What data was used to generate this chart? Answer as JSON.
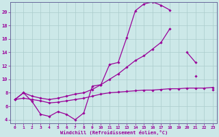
{
  "xlabel": "Windchill (Refroidissement éolien,°C)",
  "background_color": "#cce8e8",
  "grid_color": "#aacccc",
  "line_color": "#990099",
  "spine_color": "#666699",
  "xlim": [
    -0.5,
    23.5
  ],
  "ylim": [
    3.5,
    21.5
  ],
  "xticks": [
    0,
    1,
    2,
    3,
    4,
    5,
    6,
    7,
    8,
    9,
    10,
    11,
    12,
    13,
    14,
    15,
    16,
    17,
    18,
    19,
    20,
    21,
    22,
    23
  ],
  "yticks": [
    4,
    6,
    8,
    10,
    12,
    14,
    16,
    18,
    20
  ],
  "series": [
    {
      "x": [
        0,
        1,
        2,
        3,
        4,
        5,
        6,
        7,
        8,
        9,
        10,
        11,
        12,
        13,
        14,
        15,
        16,
        17,
        18,
        19,
        20,
        21
      ],
      "y": [
        7.0,
        8.0,
        6.7,
        4.8,
        4.5,
        5.2,
        4.8,
        4.0,
        5.0,
        9.0,
        9.2,
        12.2,
        12.5,
        16.2,
        20.2,
        21.2,
        21.5,
        21.0,
        20.3,
        null,
        null,
        10.5
      ]
    },
    {
      "x": [
        0,
        1,
        2,
        3,
        4,
        5,
        6,
        7,
        8,
        9,
        10,
        11,
        12,
        13,
        14,
        15,
        16,
        17,
        18,
        19,
        20,
        21,
        22,
        23
      ],
      "y": [
        7.0,
        8.0,
        7.5,
        7.2,
        7.0,
        7.2,
        7.5,
        7.8,
        8.0,
        8.5,
        9.2,
        10.0,
        10.8,
        11.8,
        12.8,
        13.5,
        14.5,
        15.5,
        17.5,
        null,
        14.0,
        12.5,
        null,
        8.5
      ]
    },
    {
      "x": [
        0,
        1,
        2,
        3,
        4,
        5,
        6,
        7,
        8,
        9,
        10,
        11,
        12,
        13,
        14,
        15,
        16,
        17,
        18,
        19,
        20,
        21,
        22,
        23
      ],
      "y": [
        7.0,
        7.2,
        7.0,
        6.8,
        6.5,
        6.6,
        6.8,
        7.0,
        7.2,
        7.5,
        7.8,
        8.0,
        8.1,
        8.2,
        8.3,
        8.4,
        8.4,
        8.5,
        8.6,
        8.6,
        8.7,
        8.7,
        8.7,
        8.8
      ]
    }
  ]
}
